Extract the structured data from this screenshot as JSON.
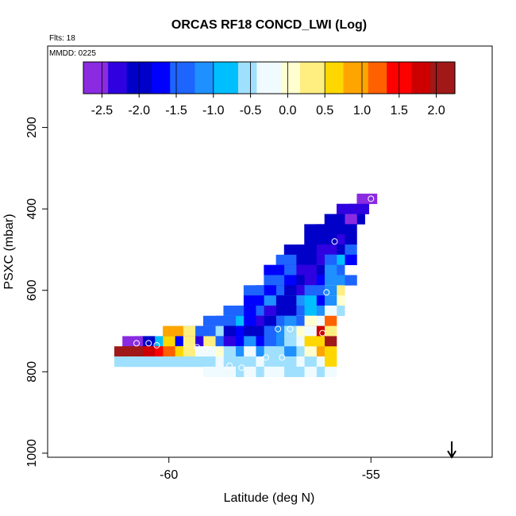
{
  "chart_data": {
    "type": "heatmap",
    "title": "ORCAS RF18 CONCD_LWI (Log)",
    "flts_label": "Flts: 18",
    "mmdd_label": "MMDD: 0225",
    "xlabel": "Latitude (deg N)",
    "ylabel": "PSXC (mbar)",
    "xlim": [
      -63,
      -52
    ],
    "ylim": [
      1010,
      0
    ],
    "x_ticks": [
      -60,
      -55
    ],
    "x_tick_labels": [
      "-60",
      "-55"
    ],
    "y_ticks": [
      200,
      400,
      600,
      800,
      1000
    ],
    "y_tick_labels": [
      "200",
      "400",
      "600",
      "800",
      "1000"
    ],
    "colorbar": {
      "range": [
        -2.75,
        2.25
      ],
      "ticks": [
        -2.5,
        -2.0,
        -1.5,
        -1.0,
        -0.5,
        0.0,
        0.5,
        1.0,
        1.5,
        2.0
      ],
      "tick_labels": [
        "-2.5",
        "-2.0",
        "-1.5",
        "-1.0",
        "-0.5",
        "0.0",
        "0.5",
        "1.0",
        "1.5",
        "2.0"
      ],
      "colors": [
        "#8a2be2",
        "#2f00e0",
        "#0000c8",
        "#0000ff",
        "#1e64ff",
        "#1e90ff",
        "#00bfff",
        "#a0e0ff",
        "#f0fbff",
        "#ffffd0",
        "#ffee80",
        "#ffd700",
        "#ffa500",
        "#ff6000",
        "#ff0000",
        "#cd0000",
        "#a01818"
      ]
    },
    "cell_size": {
      "lat": 0.5,
      "pres": 25
    },
    "cells": [
      [
        -55.1,
        375,
        -2.6
      ],
      [
        -55.3,
        400,
        -2.2
      ],
      [
        -55.6,
        400,
        -2.2
      ],
      [
        -55.4,
        425,
        -2.0
      ],
      [
        -55.6,
        425,
        -2.5
      ],
      [
        -55.9,
        425,
        -2.1
      ],
      [
        -55.6,
        450,
        -2.0
      ],
      [
        -55.9,
        450,
        -2.1
      ],
      [
        -56.1,
        450,
        -2.0
      ],
      [
        -56.4,
        450,
        -2.0
      ],
      [
        -55.6,
        475,
        -2.0
      ],
      [
        -55.9,
        475,
        -2.2
      ],
      [
        -56.1,
        475,
        -2.1
      ],
      [
        -56.4,
        475,
        -2.0
      ],
      [
        -55.6,
        500,
        -1.4
      ],
      [
        -55.9,
        500,
        -2.1
      ],
      [
        -56.1,
        500,
        -2.2
      ],
      [
        -56.4,
        500,
        -2.3
      ],
      [
        -56.6,
        500,
        -2.0
      ],
      [
        -56.9,
        500,
        -2.0
      ],
      [
        -55.6,
        525,
        -1.6
      ],
      [
        -55.9,
        525,
        -0.9
      ],
      [
        -56.1,
        525,
        -1.4
      ],
      [
        -56.4,
        525,
        -2.3
      ],
      [
        -56.6,
        525,
        -2.0
      ],
      [
        -56.9,
        525,
        -2.0
      ],
      [
        -57.1,
        525,
        -1.5
      ],
      [
        -55.9,
        550,
        -1.3
      ],
      [
        -56.1,
        550,
        -1.1
      ],
      [
        -56.4,
        550,
        -2.1
      ],
      [
        -56.6,
        550,
        -2.2
      ],
      [
        -56.9,
        550,
        -2.3
      ],
      [
        -57.1,
        550,
        -1.4
      ],
      [
        -57.4,
        550,
        -1.6
      ],
      [
        -55.6,
        575,
        -1.5
      ],
      [
        -55.9,
        575,
        -1.2
      ],
      [
        -56.1,
        575,
        -1.0
      ],
      [
        -56.4,
        575,
        -1.8
      ],
      [
        -56.6,
        575,
        -2.4
      ],
      [
        -56.9,
        575,
        -2.0
      ],
      [
        -57.1,
        575,
        -1.8
      ],
      [
        -57.4,
        575,
        -1.5
      ],
      [
        -55.9,
        600,
        0.3
      ],
      [
        -56.1,
        600,
        -1.1
      ],
      [
        -56.4,
        600,
        -1.4
      ],
      [
        -56.6,
        600,
        -1.3
      ],
      [
        -56.9,
        600,
        -2.3
      ],
      [
        -57.1,
        600,
        -2.1
      ],
      [
        -57.4,
        600,
        -1.4
      ],
      [
        -57.6,
        600,
        -1.6
      ],
      [
        -57.9,
        600,
        -1.5
      ],
      [
        -55.9,
        625,
        0.1
      ],
      [
        -56.1,
        625,
        -1.2
      ],
      [
        -56.4,
        625,
        -1.8
      ],
      [
        -56.6,
        625,
        -0.8
      ],
      [
        -56.9,
        625,
        -1.1
      ],
      [
        -57.1,
        625,
        -2.0
      ],
      [
        -57.4,
        625,
        -2.0
      ],
      [
        -57.6,
        625,
        -1.0
      ],
      [
        -57.9,
        625,
        -1.6
      ],
      [
        -55.9,
        650,
        -0.6
      ],
      [
        -56.1,
        650,
        -0.3
      ],
      [
        -56.4,
        650,
        -1.2
      ],
      [
        -56.6,
        650,
        -0.8
      ],
      [
        -56.9,
        650,
        -1.5
      ],
      [
        -57.1,
        650,
        -2.0
      ],
      [
        -57.4,
        650,
        -2.0
      ],
      [
        -57.6,
        650,
        -2.2
      ],
      [
        -57.9,
        650,
        -1.4
      ],
      [
        -58.1,
        650,
        -1.6
      ],
      [
        -58.4,
        650,
        -1.3
      ],
      [
        -56.1,
        675,
        1.3
      ],
      [
        -56.4,
        675,
        -0.2
      ],
      [
        -56.6,
        675,
        -0.1
      ],
      [
        -56.9,
        675,
        -1.4
      ],
      [
        -57.1,
        675,
        -1.0
      ],
      [
        -57.4,
        675,
        -1.5
      ],
      [
        -57.6,
        675,
        -2.0
      ],
      [
        -57.9,
        675,
        -2.3
      ],
      [
        -58.1,
        675,
        -1.6
      ],
      [
        -58.4,
        675,
        -0.8
      ],
      [
        -58.6,
        675,
        -1.4
      ],
      [
        -58.9,
        675,
        -1.3
      ],
      [
        -56.1,
        700,
        0.3
      ],
      [
        -56.4,
        700,
        1.7
      ],
      [
        -56.6,
        700,
        -0.2
      ],
      [
        -56.9,
        700,
        -0.1
      ],
      [
        -57.1,
        700,
        -0.5
      ],
      [
        -57.4,
        700,
        -1.1
      ],
      [
        -57.6,
        700,
        -1.5
      ],
      [
        -57.9,
        700,
        -2.0
      ],
      [
        -58.1,
        700,
        -2.1
      ],
      [
        -58.4,
        700,
        -1.6
      ],
      [
        -58.6,
        700,
        -2.0
      ],
      [
        -58.9,
        700,
        -0.5
      ],
      [
        -59.1,
        700,
        -1.5
      ],
      [
        -59.4,
        700,
        -1.3
      ],
      [
        -59.6,
        700,
        0.4
      ],
      [
        -59.9,
        700,
        0.9
      ],
      [
        -56.1,
        725,
        2.0
      ],
      [
        -56.4,
        725,
        0.7
      ],
      [
        -56.6,
        725,
        0.5
      ],
      [
        -56.9,
        725,
        -0.3
      ],
      [
        -57.1,
        725,
        -0.6
      ],
      [
        -57.4,
        725,
        -1.1
      ],
      [
        -57.6,
        725,
        -1.3
      ],
      [
        -57.9,
        725,
        -1.6
      ],
      [
        -58.1,
        725,
        -1.1
      ],
      [
        -58.4,
        725,
        -1.6
      ],
      [
        -58.6,
        725,
        -2.2
      ],
      [
        -58.9,
        725,
        -1.5
      ],
      [
        -59.1,
        725,
        0.3
      ],
      [
        -59.4,
        725,
        -2.4
      ],
      [
        -59.6,
        725,
        0.3
      ],
      [
        -59.9,
        725,
        -1.8
      ],
      [
        -60.1,
        725,
        0.6
      ],
      [
        -60.4,
        725,
        -0.8
      ],
      [
        -60.6,
        725,
        -2.0
      ],
      [
        -60.9,
        725,
        -2.5
      ],
      [
        -56.1,
        750,
        0.5
      ],
      [
        -56.4,
        750,
        0.8
      ],
      [
        -56.6,
        750,
        0.0
      ],
      [
        -56.9,
        750,
        -0.6
      ],
      [
        -57.1,
        750,
        -1.0
      ],
      [
        -57.4,
        750,
        -0.4
      ],
      [
        -57.6,
        750,
        -0.6
      ],
      [
        -57.9,
        750,
        -1.0
      ],
      [
        -58.1,
        750,
        -0.3
      ],
      [
        -58.4,
        750,
        -1.1
      ],
      [
        -58.6,
        750,
        -0.5
      ],
      [
        -58.9,
        750,
        0.1
      ],
      [
        -59.1,
        750,
        -0.2
      ],
      [
        -59.4,
        750,
        -0.3
      ],
      [
        -59.6,
        750,
        0.2
      ],
      [
        -59.9,
        750,
        0.5
      ],
      [
        -60.1,
        750,
        1.2
      ],
      [
        -60.4,
        750,
        1.6
      ],
      [
        -60.6,
        750,
        1.9
      ],
      [
        -60.9,
        750,
        2.1
      ],
      [
        -61.1,
        750,
        2.2
      ],
      [
        -56.1,
        775,
        0.6
      ],
      [
        -56.4,
        775,
        -0.2
      ],
      [
        -56.6,
        775,
        -0.5
      ],
      [
        -56.9,
        775,
        -0.3
      ],
      [
        -57.1,
        775,
        -0.4
      ],
      [
        -57.4,
        775,
        -0.5
      ],
      [
        -57.6,
        775,
        -0.4
      ],
      [
        -57.9,
        775,
        -0.3
      ],
      [
        -58.1,
        775,
        -0.5
      ],
      [
        -58.4,
        775,
        -0.4
      ],
      [
        -58.6,
        775,
        -0.6
      ],
      [
        -58.9,
        775,
        -0.3
      ],
      [
        -59.1,
        775,
        -0.4
      ],
      [
        -59.4,
        775,
        -0.5
      ],
      [
        -59.6,
        775,
        -0.5
      ],
      [
        -59.9,
        775,
        -0.5
      ],
      [
        -60.1,
        775,
        -0.5
      ],
      [
        -60.4,
        775,
        -0.4
      ],
      [
        -60.6,
        775,
        -0.5
      ],
      [
        -60.9,
        775,
        -0.5
      ],
      [
        -61.1,
        775,
        -0.4
      ],
      [
        -56.1,
        800,
        -0.3
      ],
      [
        -56.4,
        800,
        -0.4
      ],
      [
        -56.6,
        800,
        -0.3
      ],
      [
        -56.9,
        800,
        -0.5
      ],
      [
        -57.1,
        800,
        -0.4
      ],
      [
        -57.4,
        800,
        -0.2
      ],
      [
        -57.6,
        800,
        -0.3
      ],
      [
        -57.9,
        800,
        -0.4
      ],
      [
        -58.1,
        800,
        -0.3
      ],
      [
        -58.4,
        800,
        -0.4
      ],
      [
        -58.6,
        800,
        -0.3
      ],
      [
        -58.9,
        800,
        -0.2
      ]
    ],
    "markers": [
      [
        -55.0,
        375
      ],
      [
        -55.9,
        480
      ],
      [
        -56.1,
        605
      ],
      [
        -57.3,
        695
      ],
      [
        -57.0,
        695
      ],
      [
        -56.2,
        705
      ],
      [
        -60.8,
        730
      ],
      [
        -60.5,
        730
      ],
      [
        -60.3,
        735
      ],
      [
        -59.3,
        740
      ],
      [
        -59.1,
        745
      ],
      [
        -57.2,
        765
      ],
      [
        -57.6,
        765
      ],
      [
        -58.2,
        790
      ],
      [
        -58.5,
        785
      ],
      [
        -59.5,
        800
      ],
      [
        -60.3,
        810
      ],
      [
        -59.9,
        805
      ],
      [
        -59.7,
        820
      ],
      [
        -58.9,
        830
      ],
      [
        -57.9,
        845
      ],
      [
        -57.8,
        845
      ],
      [
        -61.2,
        825
      ],
      [
        -61.0,
        825
      ],
      [
        -60.9,
        825
      ],
      [
        -60.6,
        825
      ],
      [
        -56.4,
        825
      ],
      [
        -56.3,
        840
      ],
      [
        -56.2,
        845
      ]
    ],
    "arrow_lat": -53.0
  }
}
